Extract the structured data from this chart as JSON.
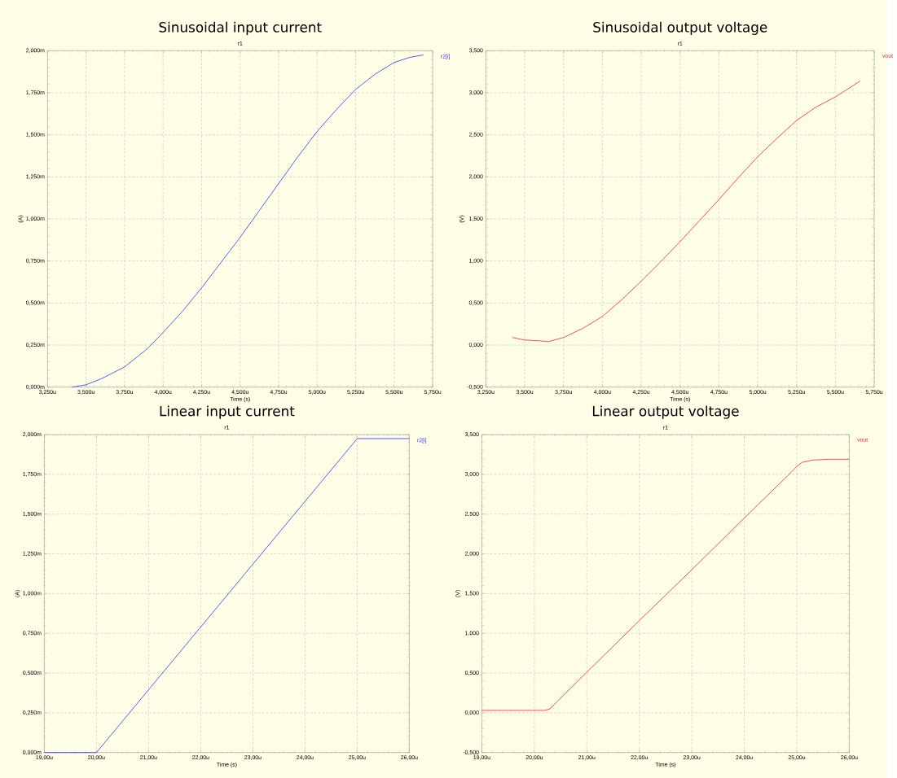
{
  "chart_data": [
    {
      "type": "line",
      "title": "Sinusoidal input current",
      "subtitle": "r1",
      "xlabel": "Time (s)",
      "ylabel": "(A)",
      "x": [
        3.41,
        3.5,
        3.6,
        3.75,
        3.9,
        4.0,
        4.125,
        4.25,
        4.375,
        4.5,
        4.625,
        4.75,
        4.875,
        5.0,
        5.125,
        5.25,
        5.375,
        5.5,
        5.6,
        5.69
      ],
      "series": [
        {
          "name": "r2[i]",
          "color": "#3030ff",
          "values": [
            0,
            0.014,
            0.05,
            0.12,
            0.23,
            0.325,
            0.45,
            0.59,
            0.74,
            0.89,
            1.05,
            1.21,
            1.37,
            1.52,
            1.65,
            1.77,
            1.86,
            1.93,
            1.96,
            1.975
          ]
        }
      ],
      "xlim": [
        3.25,
        5.75
      ],
      "ylim": [
        0,
        2
      ],
      "xticks": [
        {
          "value": 3.25,
          "label": "3,250u"
        },
        {
          "value": 3.5,
          "label": "3,500u"
        },
        {
          "value": 3.75,
          "label": "3,750u"
        },
        {
          "value": 4.0,
          "label": "4,000u"
        },
        {
          "value": 4.25,
          "label": "4,250u"
        },
        {
          "value": 4.5,
          "label": "4,500u"
        },
        {
          "value": 4.75,
          "label": "4,750u"
        },
        {
          "value": 5.0,
          "label": "5,000u"
        },
        {
          "value": 5.25,
          "label": "5,250u"
        },
        {
          "value": 5.5,
          "label": "5,500u"
        },
        {
          "value": 5.75,
          "label": "5,750u"
        }
      ],
      "yticks": [
        {
          "value": 0,
          "label": "0,000m"
        },
        {
          "value": 0.25,
          "label": "0,250m"
        },
        {
          "value": 0.5,
          "label": "0,500m"
        },
        {
          "value": 0.75,
          "label": "0,750m"
        },
        {
          "value": 1.0,
          "label": "1,000m"
        },
        {
          "value": 1.25,
          "label": "1,250m"
        },
        {
          "value": 1.5,
          "label": "1,500m"
        },
        {
          "value": 1.75,
          "label": "1,750m"
        },
        {
          "value": 2.0,
          "label": "2,000m"
        }
      ],
      "grid": true,
      "legend": "top right"
    },
    {
      "type": "line",
      "title": "Sinusoidal output voltage",
      "subtitle": "r1",
      "xlabel": "Time (s)",
      "ylabel": "(V)",
      "x": [
        3.42,
        3.5,
        3.6,
        3.65,
        3.75,
        3.875,
        4.0,
        4.125,
        4.25,
        4.375,
        4.5,
        4.625,
        4.75,
        4.875,
        5.0,
        5.125,
        5.25,
        5.375,
        5.5,
        5.66
      ],
      "series": [
        {
          "name": "vout",
          "color": "#ff2020",
          "values": [
            0.09,
            0.06,
            0.05,
            0.04,
            0.09,
            0.2,
            0.34,
            0.54,
            0.76,
            0.99,
            1.23,
            1.48,
            1.73,
            1.99,
            2.24,
            2.46,
            2.67,
            2.83,
            2.95,
            3.14
          ]
        }
      ],
      "xlim": [
        3.25,
        5.75
      ],
      "ylim": [
        -0.5,
        3.5
      ],
      "xticks": [
        {
          "value": 3.25,
          "label": "3,250u"
        },
        {
          "value": 3.5,
          "label": "3,500u"
        },
        {
          "value": 3.75,
          "label": "3,750u"
        },
        {
          "value": 4.0,
          "label": "4,000u"
        },
        {
          "value": 4.25,
          "label": "4,250u"
        },
        {
          "value": 4.5,
          "label": "4,500u"
        },
        {
          "value": 4.75,
          "label": "4,750u"
        },
        {
          "value": 5.0,
          "label": "5,000u"
        },
        {
          "value": 5.25,
          "label": "5,250u"
        },
        {
          "value": 5.5,
          "label": "5,500u"
        },
        {
          "value": 5.75,
          "label": "5,750u"
        }
      ],
      "yticks": [
        {
          "value": -0.5,
          "label": "-0,500"
        },
        {
          "value": 0,
          "label": "0,000"
        },
        {
          "value": 0.5,
          "label": "0,500"
        },
        {
          "value": 1.0,
          "label": "1,000"
        },
        {
          "value": 1.5,
          "label": "1,500"
        },
        {
          "value": 2.0,
          "label": "2,000"
        },
        {
          "value": 2.5,
          "label": "2,500"
        },
        {
          "value": 3.0,
          "label": "3,000"
        },
        {
          "value": 3.5,
          "label": "3,500"
        }
      ],
      "grid": true,
      "legend": "top right"
    },
    {
      "type": "line",
      "title": "Linear input current",
      "subtitle": "r1",
      "xlabel": "Time (s)",
      "ylabel": "(A)",
      "x": [
        19.0,
        20.0,
        25.0,
        26.0
      ],
      "series": [
        {
          "name": "r2[i]",
          "color": "#3030ff",
          "values": [
            0,
            0,
            1.975,
            1.975
          ]
        }
      ],
      "xlim": [
        19,
        26
      ],
      "ylim": [
        0,
        2
      ],
      "xticks": [
        {
          "value": 19,
          "label": "19,00u"
        },
        {
          "value": 20,
          "label": "20,00u"
        },
        {
          "value": 21,
          "label": "21,00u"
        },
        {
          "value": 22,
          "label": "22,00u"
        },
        {
          "value": 23,
          "label": "23,00u"
        },
        {
          "value": 24,
          "label": "24,00u"
        },
        {
          "value": 25,
          "label": "25,00u"
        },
        {
          "value": 26,
          "label": "26,00u"
        }
      ],
      "yticks": [
        {
          "value": 0,
          "label": "0,000m"
        },
        {
          "value": 0.25,
          "label": "0,250m"
        },
        {
          "value": 0.5,
          "label": "0,500m"
        },
        {
          "value": 0.75,
          "label": "0,750m"
        },
        {
          "value": 1.0,
          "label": "1,000m"
        },
        {
          "value": 1.25,
          "label": "1,250m"
        },
        {
          "value": 1.5,
          "label": "1,500m"
        },
        {
          "value": 1.75,
          "label": "1,750m"
        },
        {
          "value": 2.0,
          "label": "2,000m"
        }
      ],
      "grid": true,
      "legend": "top right"
    },
    {
      "type": "line",
      "title": "Linear output voltage",
      "subtitle": "r1",
      "xlabel": "Time (s)",
      "ylabel": "(V)",
      "x": [
        19.0,
        20.2,
        20.3,
        20.4,
        21.0,
        22.0,
        23.0,
        24.0,
        24.9,
        25.0,
        25.1,
        25.3,
        25.6,
        26.0
      ],
      "series": [
        {
          "name": "vout",
          "color": "#ff2020",
          "values": [
            0.03,
            0.03,
            0.05,
            0.12,
            0.51,
            1.16,
            1.8,
            2.45,
            3.03,
            3.1,
            3.15,
            3.18,
            3.19,
            3.19
          ]
        }
      ],
      "xlim": [
        19,
        26
      ],
      "ylim": [
        -0.5,
        3.5
      ],
      "xticks": [
        {
          "value": 19,
          "label": "19,00u"
        },
        {
          "value": 20,
          "label": "20,00u"
        },
        {
          "value": 21,
          "label": "21,00u"
        },
        {
          "value": 22,
          "label": "22,00u"
        },
        {
          "value": 23,
          "label": "23,00u"
        },
        {
          "value": 24,
          "label": "24,00u"
        },
        {
          "value": 25,
          "label": "25,00u"
        },
        {
          "value": 26,
          "label": "26,00u"
        }
      ],
      "yticks": [
        {
          "value": -0.5,
          "label": "-0,500"
        },
        {
          "value": 0,
          "label": "0,000"
        },
        {
          "value": 0.5,
          "label": "0,500"
        },
        {
          "value": 1.0,
          "label": "1,000"
        },
        {
          "value": 1.5,
          "label": "1,500"
        },
        {
          "value": 2.0,
          "label": "2,000"
        },
        {
          "value": 2.5,
          "label": "2,500"
        },
        {
          "value": 3.0,
          "label": "3,000"
        },
        {
          "value": 3.5,
          "label": "3,500"
        }
      ],
      "grid": true,
      "legend": "top right"
    }
  ]
}
